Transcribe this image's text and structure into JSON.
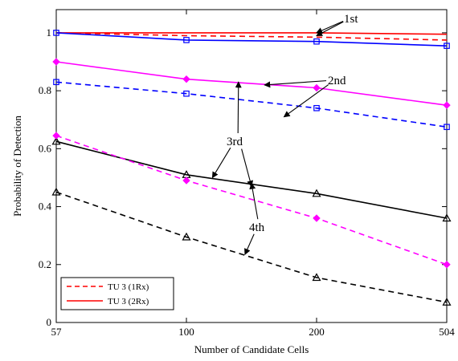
{
  "chart_data": {
    "type": "line",
    "xlabel": "Number of Candidate Cells",
    "ylabel": "Probability of Detection",
    "categories": [
      "57",
      "100",
      "200",
      "504"
    ],
    "ylim": [
      0,
      1.08
    ],
    "yticks": [
      0,
      0.2,
      0.4,
      0.6,
      0.8,
      1
    ],
    "ytick_labels": [
      "0",
      "0.2",
      "0.4",
      "0.6",
      "0.8",
      "1"
    ],
    "grid": false,
    "legend_position": "bottom-left",
    "legend": [
      {
        "label": "TU 3 (1Rx)",
        "color": "#ff0000",
        "dash": "dashed"
      },
      {
        "label": "TU 3 (2Rx)",
        "color": "#ff0000",
        "dash": "solid"
      }
    ],
    "series": [
      {
        "group": "1st",
        "rx": "1Rx",
        "color": "#ff0000",
        "marker": "none",
        "dashed": true,
        "values": [
          1.0,
          0.99,
          0.985,
          0.975
        ]
      },
      {
        "group": "1st",
        "rx": "2Rx",
        "color": "#ff0000",
        "marker": "none",
        "dashed": false,
        "values": [
          1.0,
          1.0,
          1.0,
          0.995
        ]
      },
      {
        "group": "1st",
        "rx": "2Rx",
        "color": "#0000ff",
        "marker": "square",
        "dashed": false,
        "values": [
          1.0,
          0.975,
          0.97,
          0.955
        ]
      },
      {
        "group": "2nd",
        "rx": "2Rx",
        "color": "#ff00ff",
        "marker": "diamond",
        "dashed": false,
        "values": [
          0.9,
          0.84,
          0.81,
          0.75
        ]
      },
      {
        "group": "2nd",
        "rx": "1Rx",
        "color": "#0000ff",
        "marker": "square",
        "dashed": true,
        "values": [
          0.83,
          0.79,
          0.74,
          0.675
        ]
      },
      {
        "group": "3rd",
        "rx": "2Rx",
        "color": "#000000",
        "marker": "triangle",
        "dashed": false,
        "values": [
          0.625,
          0.51,
          0.445,
          0.36
        ]
      },
      {
        "group": "3rd",
        "rx": "1Rx",
        "color": "#ff00ff",
        "marker": "diamond",
        "dashed": true,
        "values": [
          0.645,
          0.49,
          0.36,
          0.2
        ]
      },
      {
        "group": "4th",
        "rx": "1Rx",
        "color": "#000000",
        "marker": "triangle",
        "dashed": true,
        "values": [
          0.45,
          0.295,
          0.155,
          0.07
        ]
      }
    ],
    "annotations": [
      {
        "text": "1st",
        "point_at": [
          [
            2.0,
            1.0
          ],
          [
            2.0,
            0.99
          ]
        ]
      },
      {
        "text": "2nd",
        "point_at": [
          [
            1.6,
            0.82
          ],
          [
            1.75,
            0.71
          ]
        ]
      },
      {
        "text": "3rd",
        "point_at": [
          [
            1.4,
            0.83
          ],
          [
            1.2,
            0.5
          ],
          [
            1.5,
            0.47
          ]
        ]
      },
      {
        "text": "4th",
        "point_at": [
          [
            1.5,
            0.48
          ],
          [
            1.45,
            0.235
          ]
        ]
      }
    ]
  }
}
